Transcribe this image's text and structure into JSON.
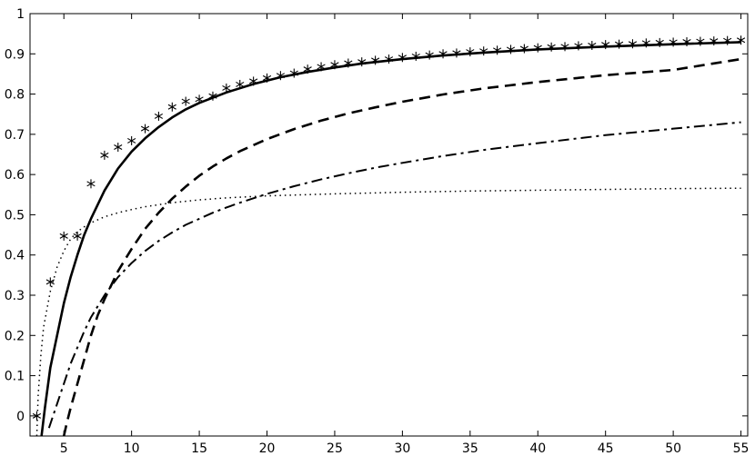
{
  "chart_data": {
    "type": "line",
    "title": "",
    "xlabel": "",
    "ylabel": "",
    "xlim": [
      2.5,
      55.5
    ],
    "ylim": [
      -0.05,
      1.0
    ],
    "grid": false,
    "x_ticks": [
      5,
      10,
      15,
      20,
      25,
      30,
      35,
      40,
      45,
      50,
      55
    ],
    "y_ticks": [
      0,
      0.1,
      0.2,
      0.3,
      0.4,
      0.5,
      0.6,
      0.7,
      0.8,
      0.9,
      1
    ],
    "x_tick_labels": [
      "5",
      "10",
      "15",
      "20",
      "25",
      "30",
      "35",
      "40",
      "45",
      "50",
      "55"
    ],
    "y_tick_labels": [
      "0",
      "0.1",
      "0.2",
      "0.3",
      "0.4",
      "0.5",
      "0.6",
      "0.7",
      "0.8",
      "0.9",
      "1"
    ],
    "series": [
      {
        "style": "asterisk",
        "color": "#000000",
        "x": [
          3,
          4,
          5,
          6,
          7,
          8,
          9,
          10,
          11,
          12,
          13,
          14,
          15,
          16,
          17,
          18,
          19,
          20,
          21,
          22,
          23,
          24,
          25,
          26,
          27,
          28,
          29,
          30,
          31,
          32,
          33,
          34,
          35,
          36,
          37,
          38,
          39,
          40,
          41,
          42,
          43,
          44,
          45,
          46,
          47,
          48,
          49,
          50,
          51,
          52,
          53,
          54,
          55
        ],
        "y": [
          0.0,
          0.333,
          0.447,
          0.447,
          0.577,
          0.648,
          0.668,
          0.684,
          0.714,
          0.745,
          0.768,
          0.782,
          0.787,
          0.795,
          0.815,
          0.824,
          0.832,
          0.84,
          0.846,
          0.852,
          0.862,
          0.868,
          0.873,
          0.877,
          0.88,
          0.884,
          0.887,
          0.891,
          0.894,
          0.897,
          0.9,
          0.902,
          0.905,
          0.907,
          0.909,
          0.911,
          0.913,
          0.915,
          0.917,
          0.918,
          0.92,
          0.921,
          0.923,
          0.924,
          0.925,
          0.927,
          0.928,
          0.929,
          0.93,
          0.931,
          0.932,
          0.933,
          0.934
        ]
      },
      {
        "style": "solid",
        "color": "#000000",
        "x": [
          3.35,
          3.6,
          4,
          4.5,
          5,
          5.5,
          6,
          6.5,
          7,
          7.5,
          8,
          9,
          10,
          11,
          12,
          13,
          14,
          15,
          17,
          19,
          21,
          23,
          25,
          27,
          30,
          33,
          36,
          40,
          45,
          50,
          55
        ],
        "y": [
          -0.05,
          0.02,
          0.12,
          0.2,
          0.28,
          0.345,
          0.4,
          0.45,
          0.49,
          0.525,
          0.56,
          0.615,
          0.657,
          0.69,
          0.718,
          0.742,
          0.762,
          0.778,
          0.804,
          0.825,
          0.842,
          0.855,
          0.866,
          0.876,
          0.887,
          0.896,
          0.903,
          0.911,
          0.918,
          0.924,
          0.929
        ]
      },
      {
        "style": "dashed",
        "color": "#000000",
        "x": [
          5.0,
          5.2,
          5.5,
          6,
          6.5,
          7,
          7.5,
          8,
          9,
          10,
          11,
          12,
          13,
          14,
          15,
          16,
          17,
          18,
          20,
          22,
          24,
          26,
          28,
          30,
          33,
          36,
          40,
          45,
          50,
          55
        ],
        "y": [
          -0.05,
          -0.02,
          0.02,
          0.08,
          0.14,
          0.2,
          0.25,
          0.29,
          0.36,
          0.415,
          0.465,
          0.505,
          0.54,
          0.57,
          0.597,
          0.62,
          0.64,
          0.658,
          0.688,
          0.713,
          0.734,
          0.752,
          0.767,
          0.781,
          0.799,
          0.814,
          0.83,
          0.847,
          0.86,
          0.887
        ]
      },
      {
        "style": "dashdot",
        "color": "#000000",
        "x": [
          3.9,
          4.5,
          5,
          5.5,
          6,
          6.5,
          7,
          8,
          9,
          10,
          11,
          12,
          13,
          14,
          15,
          16,
          17,
          18,
          20,
          22,
          24,
          26,
          28,
          30,
          33,
          36,
          40,
          45,
          50,
          55
        ],
        "y": [
          -0.03,
          0.03,
          0.08,
          0.13,
          0.17,
          0.21,
          0.245,
          0.3,
          0.345,
          0.38,
          0.41,
          0.435,
          0.456,
          0.475,
          0.49,
          0.505,
          0.518,
          0.53,
          0.552,
          0.571,
          0.588,
          0.603,
          0.617,
          0.629,
          0.646,
          0.661,
          0.678,
          0.698,
          0.714,
          0.73
        ]
      },
      {
        "style": "dotted",
        "color": "#000000",
        "x": [
          3.0,
          3.1,
          3.3,
          3.5,
          4,
          4.5,
          5,
          5.5,
          6,
          6.5,
          7,
          8,
          9,
          10,
          11,
          12,
          13,
          15,
          17,
          20,
          25,
          30,
          35,
          40,
          45,
          50,
          55
        ],
        "y": [
          -0.05,
          0.05,
          0.15,
          0.22,
          0.31,
          0.37,
          0.41,
          0.44,
          0.458,
          0.47,
          0.48,
          0.495,
          0.505,
          0.513,
          0.52,
          0.525,
          0.53,
          0.537,
          0.542,
          0.547,
          0.552,
          0.556,
          0.559,
          0.561,
          0.563,
          0.565,
          0.566
        ]
      }
    ]
  }
}
